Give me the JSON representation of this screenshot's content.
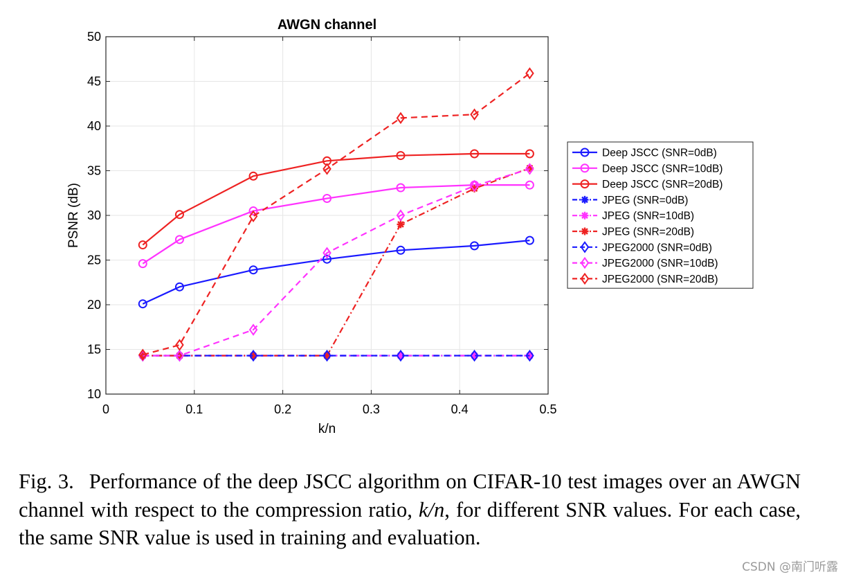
{
  "chart_data": {
    "type": "line",
    "title": "AWGN channel",
    "xlabel": "k/n",
    "ylabel": "PSNR (dB)",
    "xlim": [
      0,
      0.5
    ],
    "ylim": [
      10,
      50
    ],
    "xticks": [
      0,
      0.1,
      0.2,
      0.3,
      0.4,
      0.5
    ],
    "xtick_labels": [
      "0",
      "0.1",
      "0.2",
      "0.3",
      "0.4",
      "0.5"
    ],
    "yticks": [
      10,
      15,
      20,
      25,
      30,
      35,
      40,
      45,
      50
    ],
    "ytick_labels": [
      "10",
      "15",
      "20",
      "25",
      "30",
      "35",
      "40",
      "45",
      "50"
    ],
    "grid": true,
    "legend_position": "outside-right",
    "x": [
      0.0417,
      0.0833,
      0.1667,
      0.25,
      0.3333,
      0.4167,
      0.4792
    ],
    "series": [
      {
        "name": "Deep JSCC (SNR=0dB)",
        "color": "#1a1aff",
        "dash": "solid",
        "marker": "circle",
        "values": [
          20.1,
          22.0,
          23.9,
          25.1,
          26.1,
          26.6,
          27.2
        ]
      },
      {
        "name": "Deep JSCC (SNR=10dB)",
        "color": "#ff33ff",
        "dash": "solid",
        "marker": "circle",
        "values": [
          24.6,
          27.3,
          30.5,
          31.9,
          33.1,
          33.4,
          33.4
        ]
      },
      {
        "name": "Deep JSCC (SNR=20dB)",
        "color": "#ee2222",
        "dash": "solid",
        "marker": "circle",
        "values": [
          26.7,
          30.1,
          34.4,
          36.1,
          36.7,
          36.9,
          36.9
        ]
      },
      {
        "name": "JPEG (SNR=0dB)",
        "color": "#1a1aff",
        "dash": "dashdot",
        "marker": "star",
        "values": [
          14.3,
          14.3,
          14.3,
          14.3,
          14.3,
          14.3,
          14.3
        ]
      },
      {
        "name": "JPEG (SNR=10dB)",
        "color": "#ff33ff",
        "dash": "dashdot",
        "marker": "star",
        "values": [
          14.3,
          14.3,
          14.3,
          14.3,
          14.3,
          14.3,
          14.3
        ]
      },
      {
        "name": "JPEG (SNR=20dB)",
        "color": "#ee2222",
        "dash": "dashdot",
        "marker": "star",
        "values": [
          14.3,
          14.3,
          14.3,
          14.3,
          29.0,
          33.0,
          35.3
        ]
      },
      {
        "name": "JPEG2000 (SNR=0dB)",
        "color": "#1a1aff",
        "dash": "dashed",
        "marker": "diamond",
        "values": [
          14.3,
          14.3,
          14.3,
          14.3,
          14.3,
          14.3,
          14.3
        ]
      },
      {
        "name": "JPEG2000 (SNR=10dB)",
        "color": "#ff33ff",
        "dash": "dashed",
        "marker": "diamond",
        "values": [
          14.3,
          14.3,
          17.2,
          25.8,
          30.0,
          33.3,
          35.2
        ]
      },
      {
        "name": "JPEG2000 (SNR=20dB)",
        "color": "#ee2222",
        "dash": "dashed",
        "marker": "diamond",
        "values": [
          14.4,
          15.5,
          29.9,
          35.2,
          40.9,
          41.3,
          45.9
        ]
      }
    ]
  },
  "caption": {
    "label": "Fig. 3.",
    "text_before": "Performance of the deep JSCC algorithm on CIFAR-10 test images over an AWGN channel with respect to the compression ratio, ",
    "italic": "k/n",
    "text_after": ", for different SNR values. For each case, the same SNR value is used in training and evaluation."
  },
  "watermark": "CSDN @南门听露"
}
